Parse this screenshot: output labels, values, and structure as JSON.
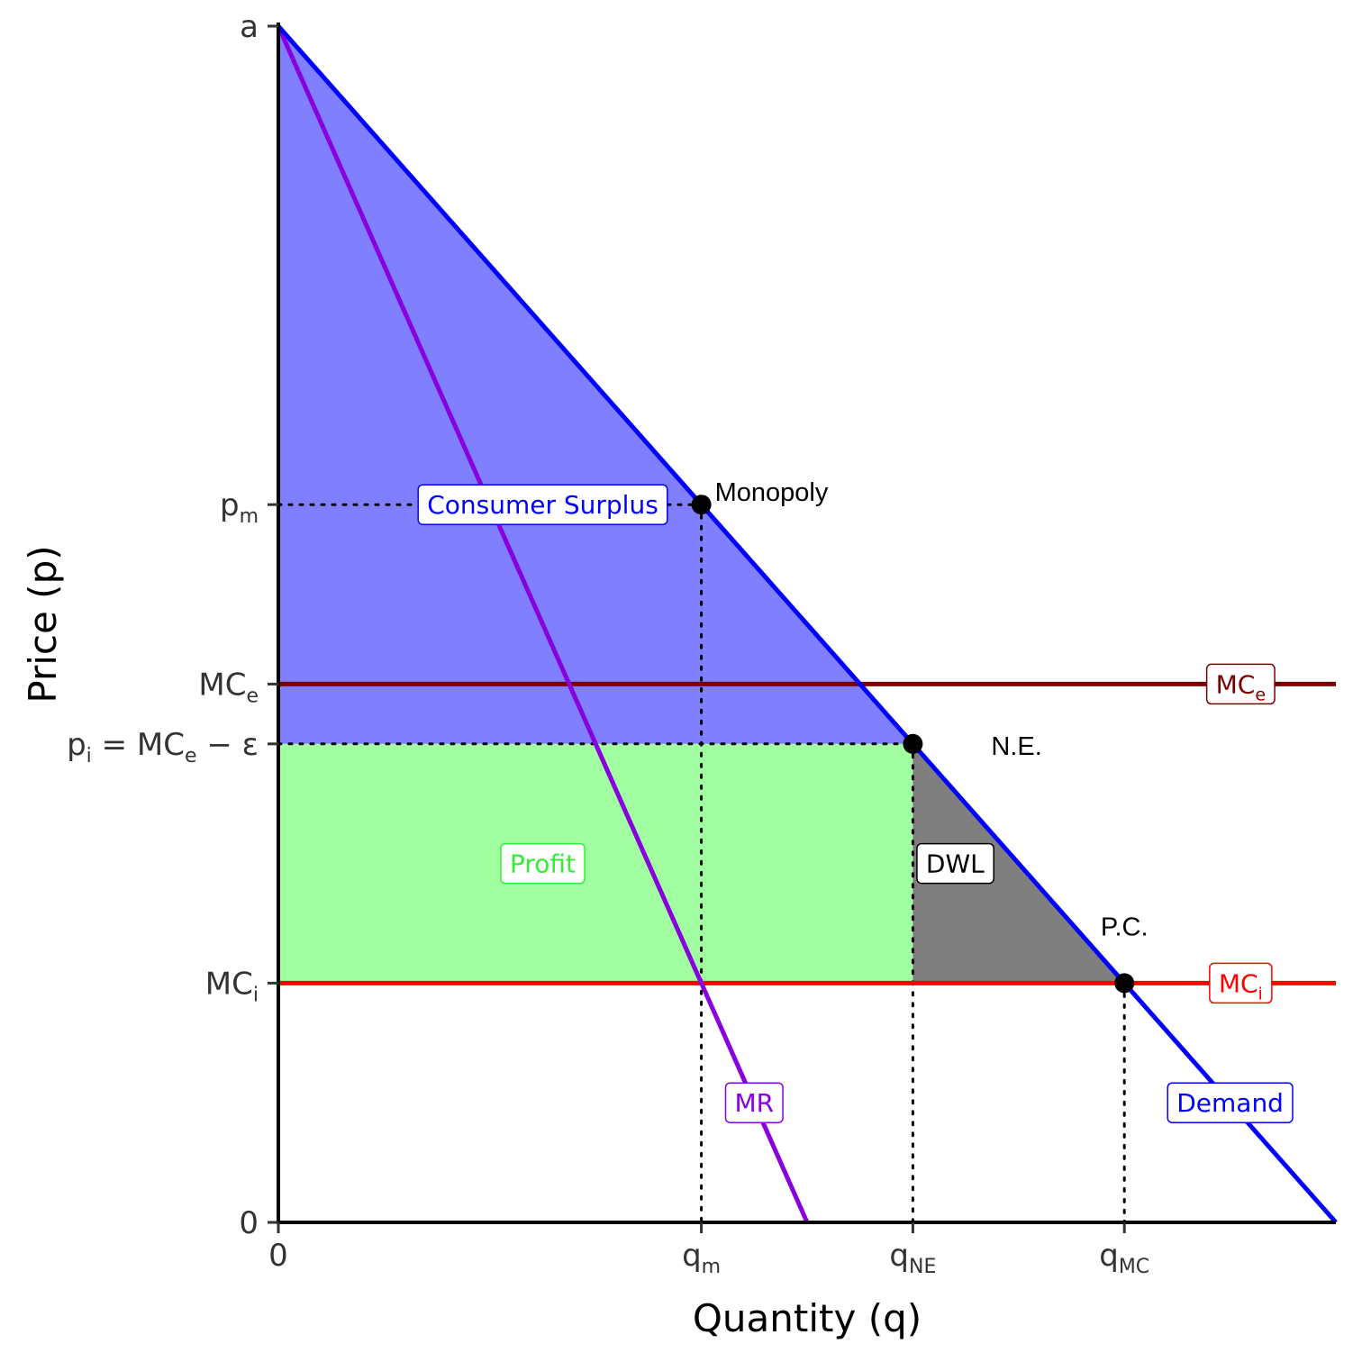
{
  "chart_data": {
    "type": "area",
    "title": "",
    "xlabel": "Quantity (q)",
    "ylabel": "Price (p)",
    "xlim": [
      0,
      100
    ],
    "ylim": [
      0,
      100
    ],
    "params": {
      "a": 100,
      "demand_slope": 1,
      "MC_e": 45,
      "p_i": 40,
      "MC_i": 20,
      "MR_slope": 2
    },
    "x_ticks": [
      {
        "value": 0,
        "base": "0",
        "sub": ""
      },
      {
        "value": 40,
        "base": "q",
        "sub": "m"
      },
      {
        "value": 60,
        "base": "q",
        "sub": "NE"
      },
      {
        "value": 80,
        "base": "q",
        "sub": "MC"
      }
    ],
    "y_ticks": [
      {
        "value": 0,
        "parts": [
          [
            "0",
            ""
          ]
        ]
      },
      {
        "value": 20,
        "parts": [
          [
            "MC",
            "i"
          ]
        ]
      },
      {
        "value": 40,
        "parts": [
          [
            "p",
            "i"
          ],
          [
            " = MC",
            "e"
          ],
          [
            " − ε",
            ""
          ]
        ]
      },
      {
        "value": 45,
        "parts": [
          [
            "MC",
            "e"
          ]
        ]
      },
      {
        "value": 60,
        "parts": [
          [
            "p",
            "m"
          ]
        ]
      },
      {
        "value": 100,
        "parts": [
          [
            "a",
            ""
          ]
        ]
      }
    ],
    "series": [
      {
        "name": "Demand",
        "points": [
          [
            0,
            100
          ],
          [
            100,
            0
          ]
        ],
        "color": "#0000ff"
      },
      {
        "name": "MR",
        "points": [
          [
            0,
            100
          ],
          [
            50,
            0
          ]
        ],
        "color": "#8800dd"
      },
      {
        "name": "MC_e",
        "points": [
          [
            0,
            45
          ],
          [
            100,
            45
          ]
        ],
        "color": "#7a0000"
      },
      {
        "name": "MC_i",
        "points": [
          [
            0,
            20
          ],
          [
            100,
            20
          ]
        ],
        "color": "#ff0000"
      }
    ],
    "regions": [
      {
        "name": "Consumer Surplus",
        "points": [
          [
            0,
            100
          ],
          [
            60,
            40
          ],
          [
            0,
            40
          ]
        ],
        "color": "#0000ff",
        "opacity": 0.5
      },
      {
        "name": "Profit",
        "points": [
          [
            0,
            40
          ],
          [
            60,
            40
          ],
          [
            60,
            20
          ],
          [
            0,
            20
          ]
        ],
        "color": "#00ff00",
        "opacity": 0.37
      },
      {
        "name": "DWL",
        "points": [
          [
            60,
            40
          ],
          [
            80,
            20
          ],
          [
            60,
            20
          ]
        ],
        "color": "#000000",
        "opacity": 0.5
      }
    ],
    "guides": [
      {
        "points": [
          [
            0,
            60
          ],
          [
            40,
            60
          ]
        ]
      },
      {
        "points": [
          [
            40,
            60
          ],
          [
            40,
            0
          ]
        ]
      },
      {
        "points": [
          [
            0,
            40
          ],
          [
            60,
            40
          ]
        ]
      },
      {
        "points": [
          [
            60,
            40
          ],
          [
            60,
            0
          ]
        ]
      },
      {
        "points": [
          [
            80,
            20
          ],
          [
            80,
            0
          ]
        ]
      }
    ],
    "points": [
      {
        "name": "Monopoly",
        "x": 40,
        "y": 60
      },
      {
        "name": "N.E.",
        "x": 60,
        "y": 40
      },
      {
        "name": "P.C.",
        "x": 80,
        "y": 20
      }
    ],
    "boxed_labels": [
      {
        "parts": [
          [
            "Consumer Surplus",
            ""
          ]
        ],
        "x": 25,
        "y": 60,
        "color": "#0000ff"
      },
      {
        "parts": [
          [
            "Profit",
            ""
          ]
        ],
        "x": 25,
        "y": 30,
        "color": "#33ee33"
      },
      {
        "parts": [
          [
            "DWL",
            ""
          ]
        ],
        "x": 64,
        "y": 30,
        "color": "#000000"
      },
      {
        "parts": [
          [
            "MC",
            "e"
          ]
        ],
        "x": 91,
        "y": 45,
        "color": "#7a0000"
      },
      {
        "parts": [
          [
            "MC",
            "i"
          ]
        ],
        "x": 91,
        "y": 20,
        "color": "#ff0000"
      },
      {
        "parts": [
          [
            "MR",
            ""
          ]
        ],
        "x": 45,
        "y": 10,
        "color": "#8800dd"
      },
      {
        "parts": [
          [
            "Demand",
            ""
          ]
        ],
        "x": 90,
        "y": 10,
        "color": "#0000ff"
      }
    ]
  }
}
